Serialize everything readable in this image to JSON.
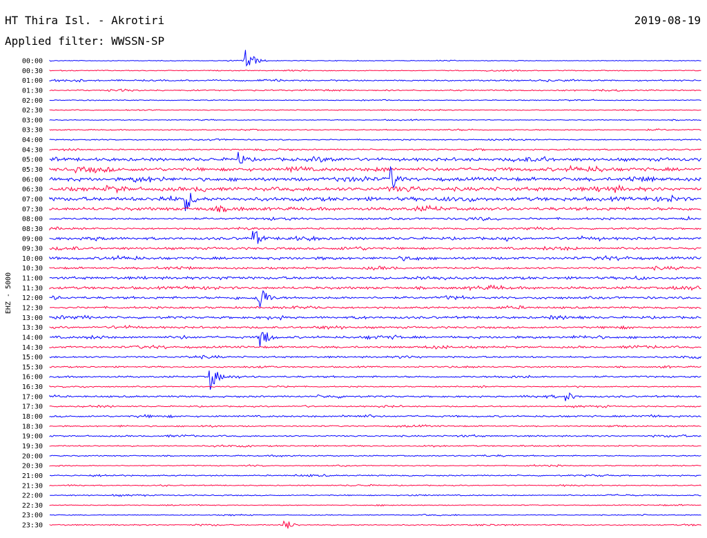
{
  "header": {
    "station": "HT Thira Isl. - Akrotiri",
    "date": "2019-08-19",
    "filter": "Applied filter: WWSSN-SP"
  },
  "chart_data": {
    "type": "line",
    "title": "HT Thira Isl. - Akrotiri",
    "ylabel": "EHZ - 5000",
    "colors": [
      "#0000ff",
      "#ff0040"
    ],
    "time_labels": [
      "00:00",
      "00:30",
      "01:00",
      "01:30",
      "02:00",
      "02:30",
      "03:00",
      "03:30",
      "04:00",
      "04:30",
      "05:00",
      "05:30",
      "06:00",
      "06:30",
      "07:00",
      "07:30",
      "08:00",
      "08:30",
      "09:00",
      "09:30",
      "10:00",
      "10:30",
      "11:00",
      "11:30",
      "12:00",
      "12:30",
      "13:00",
      "13:30",
      "14:00",
      "14:30",
      "15:00",
      "15:30",
      "16:00",
      "16:30",
      "17:00",
      "17:30",
      "18:00",
      "18:30",
      "19:00",
      "19:30",
      "20:00",
      "20:30",
      "21:00",
      "21:30",
      "22:00",
      "22:30",
      "23:00",
      "23:30"
    ],
    "trace_activity": [
      0.5,
      0.6,
      1.0,
      0.9,
      0.6,
      0.6,
      0.5,
      0.7,
      0.8,
      0.9,
      2.2,
      2.4,
      2.4,
      2.6,
      2.6,
      2.2,
      1.4,
      1.2,
      1.8,
      1.6,
      1.8,
      1.4,
      1.8,
      1.8,
      1.6,
      1.4,
      1.6,
      1.4,
      1.6,
      1.4,
      1.2,
      1.0,
      1.2,
      0.8,
      1.2,
      0.9,
      1.2,
      0.9,
      1.0,
      0.9,
      0.8,
      0.7,
      0.9,
      0.7,
      0.8,
      0.6,
      0.6,
      0.8
    ],
    "events": [
      {
        "line": "00:00",
        "minute": 9.0,
        "amplitude": 22
      },
      {
        "line": "05:00",
        "minute": 8.7,
        "amplitude": 12
      },
      {
        "line": "06:00",
        "minute": 15.7,
        "amplitude": 20
      },
      {
        "line": "07:00",
        "minute": 6.3,
        "amplitude": 18
      },
      {
        "line": "09:00",
        "minute": 9.4,
        "amplitude": 16
      },
      {
        "line": "12:00",
        "minute": 9.6,
        "amplitude": 26
      },
      {
        "line": "14:00",
        "minute": 9.7,
        "amplitude": 20
      },
      {
        "line": "16:00",
        "minute": 7.4,
        "amplitude": 20
      },
      {
        "line": "17:00",
        "minute": 23.8,
        "amplitude": 8
      },
      {
        "line": "23:30",
        "minute": 10.8,
        "amplitude": 10
      }
    ]
  }
}
